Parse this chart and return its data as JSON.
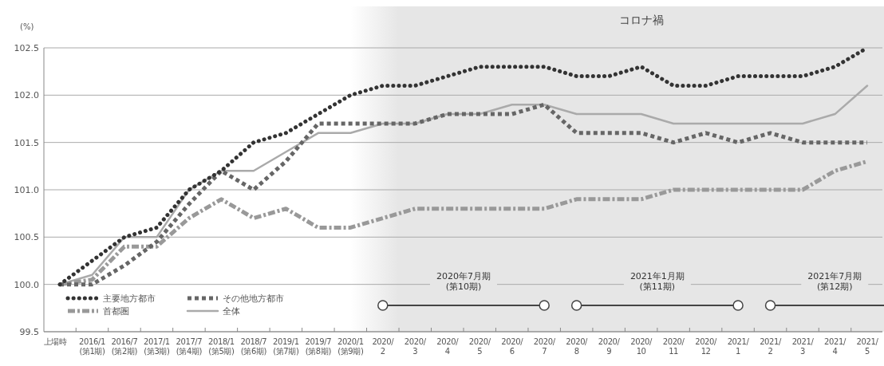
{
  "chart_data": {
    "type": "line",
    "ylabel": "(%)",
    "categories": [
      "上場時",
      "2016/1\n(第1期)",
      "2016/7\n(第2期)",
      "2017/1\n(第3期)",
      "2017/7\n(第4期)",
      "2018/1\n(第5期)",
      "2018/7\n(第6期)",
      "2019/1\n(第7期)",
      "2019/7\n(第8期)",
      "2020/1\n(第9期)",
      "2020/\n2",
      "2020/\n3",
      "2020/\n4",
      "2020/\n5",
      "2020/\n6",
      "2020/\n7",
      "2020/\n8",
      "2020/\n9",
      "2020/\n10",
      "2020/\n11",
      "2020/\n12",
      "2021/\n1",
      "2021/\n2",
      "2021/\n3",
      "2021/\n4",
      "2021/\n5"
    ],
    "series": [
      {
        "name": "主要地方都市",
        "color": "#333333",
        "line_style": "dotted",
        "values": [
          100.0,
          100.25,
          100.5,
          100.6,
          101.0,
          101.2,
          101.5,
          101.6,
          101.8,
          102.0,
          102.1,
          102.1,
          102.2,
          102.3,
          102.3,
          102.3,
          102.2,
          102.2,
          102.3,
          102.1,
          102.1,
          102.2,
          102.2,
          102.2,
          102.3,
          102.5
        ]
      },
      {
        "name": "その他地方都市",
        "color": "#666666",
        "line_style": "dashed",
        "values": [
          100.0,
          100.0,
          100.2,
          100.45,
          100.85,
          101.2,
          101.0,
          101.3,
          101.7,
          101.7,
          101.7,
          101.7,
          101.8,
          101.8,
          101.8,
          101.9,
          101.6,
          101.6,
          101.6,
          101.5,
          101.6,
          101.5,
          101.6,
          101.5,
          101.5,
          101.5
        ]
      },
      {
        "name": "首都圏",
        "color": "#999999",
        "line_style": "dashdot",
        "values": [
          100.0,
          100.05,
          100.4,
          100.4,
          100.7,
          100.9,
          100.7,
          100.8,
          100.6,
          100.6,
          100.7,
          100.8,
          100.8,
          100.8,
          100.8,
          100.8,
          100.9,
          100.9,
          100.9,
          101.0,
          101.0,
          101.0,
          101.0,
          101.0,
          101.2,
          101.3
        ]
      },
      {
        "name": "全体",
        "color": "#aaaaaa",
        "line_style": "solid",
        "values": [
          100.0,
          100.1,
          100.5,
          100.5,
          101.0,
          101.2,
          101.2,
          101.4,
          101.6,
          101.6,
          101.7,
          101.7,
          101.8,
          101.8,
          101.9,
          101.9,
          101.8,
          101.8,
          101.8,
          101.7,
          101.7,
          101.7,
          101.7,
          101.7,
          101.8,
          102.1
        ]
      }
    ],
    "ylim": [
      99.5,
      102.5
    ],
    "yticks": [
      99.5,
      {
        "value": 100.0,
        "label": "100.0"
      },
      100.5,
      {
        "value": 101.0,
        "label": "101.0"
      },
      101.5,
      {
        "value": 102.0,
        "label": "102.0"
      },
      102.5
    ],
    "grid": "y",
    "legend": "bottom left",
    "bands": [
      {
        "axis": "x",
        "from": "2020/1\n(第9期)",
        "to": "2021/\n5",
        "label": "コロナ禍",
        "color": "#e6e6e6"
      }
    ],
    "annotations": [
      "2020年7月期\n(第10期)",
      "2021年1月期\n(第11期)",
      "2021年7月期\n(第12期)"
    ]
  }
}
